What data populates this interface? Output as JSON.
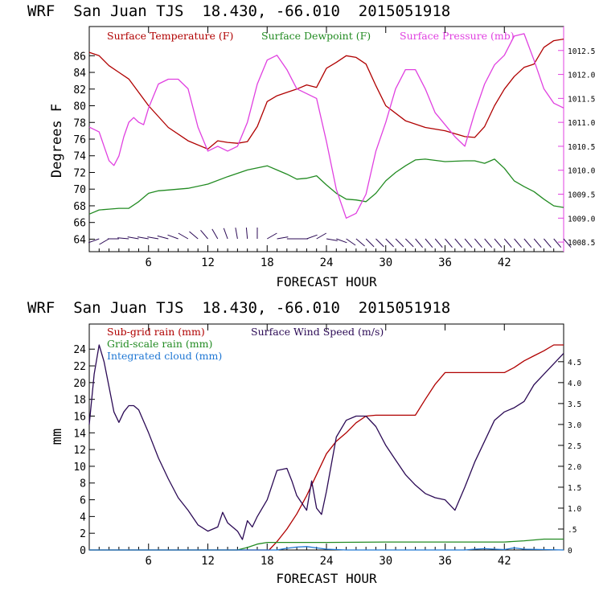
{
  "chart_data": [
    {
      "type": "line",
      "header": "WRF  San Juan TJS  18.430, -66.010  2015051918",
      "xlabel": "FORECAST HOUR",
      "ylabel": "Degrees F",
      "xlim": [
        0,
        48
      ],
      "x_ticks": [
        6,
        12,
        18,
        24,
        30,
        36,
        42
      ],
      "ylim_left": [
        62.5,
        89.5
      ],
      "y_ticks_left": [
        64,
        66,
        68,
        70,
        72,
        74,
        76,
        78,
        80,
        82,
        84,
        86
      ],
      "ylim_right": [
        1008.3,
        1013.0
      ],
      "y_ticks_right": [
        "1008.5",
        "1009.0",
        "1009.5",
        "1010.0",
        "1010.5",
        "1011.0",
        "1011.5",
        "1012.0",
        "1012.5"
      ],
      "legend": [
        "Surface Temperature (F)",
        "Surface Dewpoint (F)",
        "Surface Pressure (mb)"
      ],
      "series": [
        {
          "name": "Surface Temperature (F)",
          "color": "#b00000",
          "axis": "left",
          "x": [
            0,
            1,
            2,
            3,
            4,
            6,
            8,
            10,
            12,
            13,
            14,
            15,
            16,
            17,
            18,
            19,
            20,
            21,
            22,
            23,
            24,
            25,
            26,
            27,
            28,
            29,
            30,
            32,
            34,
            36,
            38,
            39,
            40,
            41,
            42,
            43,
            44,
            45,
            46,
            47,
            48
          ],
          "values": [
            86.4,
            86.0,
            84.8,
            84.0,
            83.2,
            80.0,
            77.4,
            75.8,
            74.8,
            75.8,
            75.6,
            75.5,
            75.7,
            77.5,
            80.5,
            81.2,
            81.6,
            82.0,
            82.5,
            82.2,
            84.5,
            85.2,
            86.0,
            85.8,
            85.0,
            82.4,
            80.0,
            78.2,
            77.4,
            77.0,
            76.3,
            76.2,
            77.5,
            80.0,
            82.0,
            83.5,
            84.6,
            85.0,
            87.0,
            87.8,
            88.0
          ]
        },
        {
          "name": "Surface Dewpoint (F)",
          "color": "#228b22",
          "axis": "left",
          "x": [
            0,
            1,
            2,
            3,
            4,
            5,
            6,
            7,
            8,
            10,
            12,
            14,
            16,
            18,
            19,
            20,
            21,
            22,
            23,
            24,
            25,
            26,
            27,
            28,
            29,
            30,
            31,
            32,
            33,
            34,
            36,
            38,
            39,
            40,
            41,
            42,
            43,
            44,
            45,
            46,
            47,
            48
          ],
          "values": [
            67.0,
            67.5,
            67.6,
            67.7,
            67.7,
            68.5,
            69.5,
            69.8,
            69.9,
            70.1,
            70.6,
            71.5,
            72.3,
            72.8,
            72.3,
            71.8,
            71.2,
            71.3,
            71.6,
            70.5,
            69.5,
            68.8,
            68.7,
            68.5,
            69.5,
            71.0,
            72.0,
            72.8,
            73.5,
            73.6,
            73.3,
            73.4,
            73.4,
            73.1,
            73.6,
            72.5,
            71.0,
            70.3,
            69.7,
            68.8,
            68.0,
            67.8
          ]
        },
        {
          "name": "Surface Pressure (mb)",
          "color": "#e040e0",
          "axis": "right",
          "x": [
            0,
            1,
            1.5,
            2,
            2.5,
            3,
            3.5,
            4,
            4.5,
            5,
            5.5,
            6,
            7,
            8,
            9,
            10,
            11,
            12,
            13,
            14,
            15,
            16,
            17,
            18,
            19,
            20,
            21,
            22,
            23,
            24,
            25,
            26,
            27,
            28,
            29,
            30,
            31,
            32,
            33,
            34,
            35,
            36,
            37,
            38,
            39,
            40,
            41,
            42,
            43,
            44,
            45,
            46,
            47,
            48
          ],
          "values": [
            1010.9,
            1010.8,
            1010.5,
            1010.2,
            1010.1,
            1010.3,
            1010.7,
            1011.0,
            1011.1,
            1011.0,
            1010.95,
            1011.3,
            1011.8,
            1011.9,
            1011.9,
            1011.7,
            1010.9,
            1010.4,
            1010.5,
            1010.4,
            1010.5,
            1011.0,
            1011.8,
            1012.3,
            1012.4,
            1012.1,
            1011.7,
            1011.6,
            1011.5,
            1010.6,
            1009.6,
            1009.0,
            1009.1,
            1009.5,
            1010.4,
            1011.0,
            1011.7,
            1012.1,
            1012.1,
            1011.7,
            1011.2,
            1010.95,
            1010.7,
            1010.5,
            1011.2,
            1011.8,
            1012.2,
            1012.4,
            1012.8,
            1012.85,
            1012.3,
            1011.7,
            1011.4,
            1011.3
          ]
        }
      ],
      "wind_barbs": {
        "x": [
          1,
          2,
          3,
          4,
          5,
          6,
          7,
          8,
          9,
          10,
          11,
          12,
          13,
          14,
          15,
          16,
          17,
          18,
          19,
          20,
          21,
          22,
          23,
          24,
          25,
          26,
          27,
          28,
          29,
          30,
          31,
          32,
          33,
          34,
          35,
          36,
          37,
          38,
          39,
          40,
          41,
          42,
          43,
          44,
          45,
          46,
          47,
          48
        ],
        "direction_deg": [
          250,
          240,
          270,
          275,
          280,
          280,
          280,
          285,
          290,
          300,
          310,
          320,
          330,
          340,
          350,
          355,
          0,
          60,
          80,
          90,
          90,
          70,
          60,
          100,
          110,
          125,
          130,
          135,
          135,
          135,
          135,
          135,
          140,
          140,
          140,
          140,
          140,
          140,
          140,
          140,
          140,
          140,
          140,
          140,
          140,
          140,
          140,
          140
        ],
        "color": "#2b0a55"
      },
      "grid": false
    },
    {
      "type": "line",
      "header": "WRF  San Juan TJS  18.430, -66.010  2015051918",
      "xlabel": "FORECAST HOUR",
      "ylabel": "mm",
      "xlim": [
        0,
        48
      ],
      "x_ticks": [
        6,
        12,
        18,
        24,
        30,
        36,
        42
      ],
      "ylim_left": [
        0,
        27
      ],
      "y_ticks_left": [
        0,
        2,
        4,
        6,
        8,
        10,
        12,
        14,
        16,
        18,
        20,
        22,
        24
      ],
      "ylim_right": [
        0,
        5.4
      ],
      "y_ticks_right": [
        "0",
        ".5",
        "1.0",
        "1.5",
        "2.0",
        "2.5",
        "3.0",
        "3.5",
        "4.0",
        "4.5"
      ],
      "legend": [
        "Sub-grid rain (mm)",
        "Grid-scale rain (mm)",
        "Integrated cloud (mm)",
        "Surface Wind Speed (m/s)"
      ],
      "series": [
        {
          "name": "Sub-grid rain (mm)",
          "color": "#b00000",
          "axis": "left",
          "x": [
            0,
            18.2,
            19,
            20,
            21,
            22,
            23,
            24,
            25,
            26,
            27,
            28,
            29,
            30,
            31,
            32,
            33,
            34,
            35,
            36,
            40,
            42,
            43,
            44,
            45,
            46,
            47,
            48
          ],
          "values": [
            0,
            0,
            1.0,
            2.5,
            4.3,
            6.5,
            9.0,
            11.5,
            13.0,
            14.0,
            15.2,
            16.0,
            16.1,
            16.1,
            16.1,
            16.1,
            16.1,
            18.0,
            19.8,
            21.2,
            21.2,
            21.2,
            21.8,
            22.6,
            23.2,
            23.8,
            24.5,
            24.5
          ]
        },
        {
          "name": "Grid-scale rain (mm)",
          "color": "#228b22",
          "axis": "left",
          "x": [
            0,
            15,
            16,
            17,
            18,
            19,
            24,
            30,
            36,
            40,
            42,
            44,
            46,
            48
          ],
          "values": [
            0,
            0,
            0.3,
            0.7,
            0.9,
            0.9,
            0.9,
            0.95,
            0.95,
            0.95,
            0.95,
            1.1,
            1.3,
            1.3
          ]
        },
        {
          "name": "Integrated cloud (mm)",
          "color": "#1f77d4",
          "axis": "left",
          "x": [
            0,
            19,
            20,
            21,
            22,
            23,
            24,
            25,
            26,
            38,
            39,
            40,
            41,
            42,
            43,
            44,
            48
          ],
          "values": [
            0,
            0,
            0.2,
            0.35,
            0.4,
            0.25,
            0.1,
            0.05,
            0,
            0,
            0.1,
            0.15,
            0.1,
            0.05,
            0.25,
            0.1,
            0
          ]
        },
        {
          "name": "Surface Wind Speed (m/s)",
          "color": "#2b0a55",
          "axis": "right",
          "x": [
            0,
            0.5,
            1,
            1.5,
            2,
            2.5,
            3,
            3.5,
            4,
            4.5,
            5,
            6,
            7,
            8,
            9,
            10,
            11,
            12,
            13,
            13.5,
            14,
            15,
            15.5,
            16,
            16.5,
            17,
            18,
            19,
            20,
            20.5,
            21,
            22,
            22.5,
            23,
            23.5,
            24,
            25,
            26,
            27,
            28,
            29,
            30,
            31,
            32,
            33,
            34,
            35,
            36,
            37,
            38,
            39,
            40,
            41,
            42,
            43,
            44,
            45,
            46,
            47,
            48
          ],
          "values": [
            3.0,
            4.2,
            4.9,
            4.5,
            3.9,
            3.3,
            3.05,
            3.3,
            3.45,
            3.45,
            3.35,
            2.8,
            2.2,
            1.7,
            1.25,
            0.95,
            0.6,
            0.45,
            0.55,
            0.9,
            0.65,
            0.45,
            0.25,
            0.7,
            0.55,
            0.8,
            1.2,
            1.9,
            1.95,
            1.65,
            1.3,
            0.95,
            1.65,
            1.0,
            0.85,
            1.4,
            2.7,
            3.1,
            3.2,
            3.2,
            2.95,
            2.5,
            2.15,
            1.8,
            1.55,
            1.35,
            1.25,
            1.2,
            0.95,
            1.5,
            2.1,
            2.6,
            3.1,
            3.3,
            3.4,
            3.55,
            3.95,
            4.2,
            4.45,
            4.7
          ]
        }
      ],
      "grid": false
    }
  ]
}
